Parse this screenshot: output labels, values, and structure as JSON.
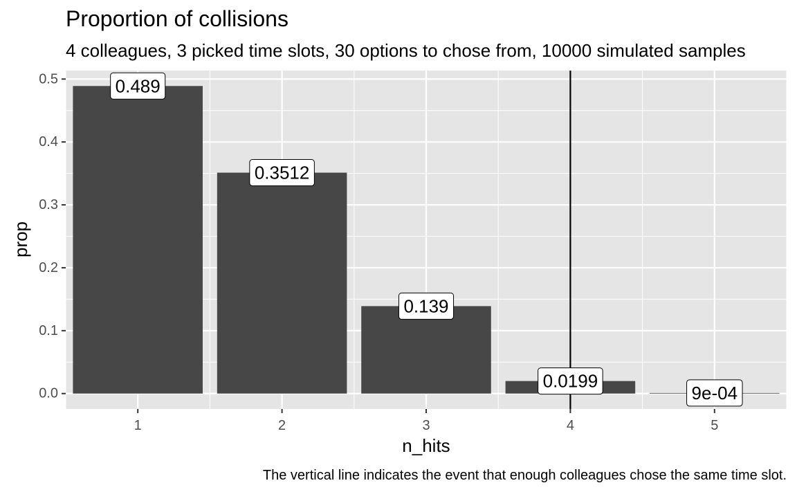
{
  "chart_data": {
    "type": "bar",
    "title": "Proportion of collisions",
    "subtitle": "4 colleagues, 3 picked time slots, 30 options to chose from, 10000 simulated samples",
    "caption": "The vertical line indicates the event that enough colleagues chose the same time slot.",
    "xlabel": "n_hits",
    "ylabel": "prop",
    "categories": [
      "1",
      "2",
      "3",
      "4",
      "5"
    ],
    "values": [
      0.489,
      0.3512,
      0.139,
      0.0199,
      0.0009
    ],
    "data_labels": [
      "0.489",
      "0.3512",
      "0.139",
      "0.0199",
      "9e-04"
    ],
    "y_ticks": [
      0.0,
      0.1,
      0.2,
      0.3,
      0.4,
      0.5
    ],
    "y_tick_labels": [
      "0.0",
      "0.1",
      "0.2",
      "0.3",
      "0.4",
      "0.5"
    ],
    "ylim": [
      -0.0245,
      0.5135
    ],
    "xlim": [
      0.5,
      5.5
    ],
    "vline_x": 4,
    "grid": true,
    "colors": {
      "bar": "#474747",
      "panel": "#e5e5e5",
      "grid": "#ffffff",
      "vline": "#000000",
      "label_bg": "#ffffff"
    }
  }
}
